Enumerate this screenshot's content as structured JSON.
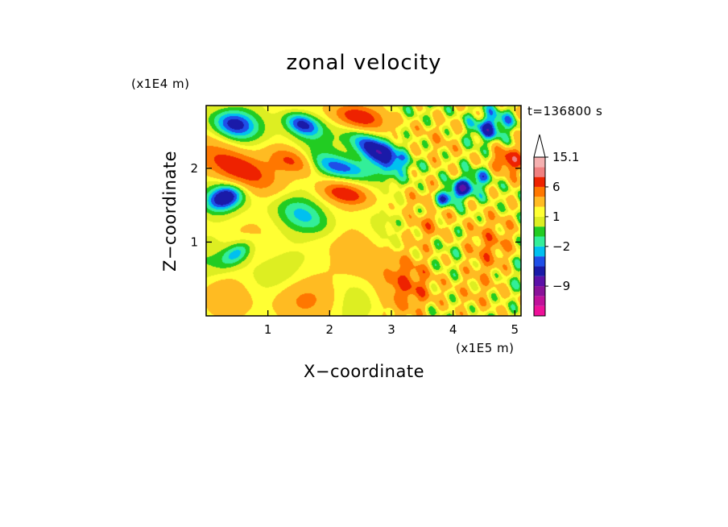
{
  "chart_data": {
    "type": "heatmap",
    "title": "zonal velocity",
    "xlabel": "X−coordinate",
    "ylabel": "Z−coordinate",
    "x_unit": "(x1E5 m)",
    "y_unit": "(x1E4 m)",
    "time_label": "t=136800 s",
    "xlim": [
      0,
      5.1
    ],
    "ylim": [
      0,
      2.85
    ],
    "x_ticks": [
      1,
      2,
      3,
      4,
      5
    ],
    "x_tick_labels": [
      "1",
      "2",
      "3",
      "4",
      "5"
    ],
    "y_ticks": [
      1,
      2
    ],
    "y_tick_labels": [
      "1",
      "2"
    ],
    "colorbar": {
      "labels": [
        {
          "value": 15.1,
          "text": "15.1"
        },
        {
          "value": 6,
          "text": "6"
        },
        {
          "value": 1,
          "text": "1"
        },
        {
          "value": -2,
          "text": "−2"
        },
        {
          "value": -9,
          "text": "−9"
        }
      ],
      "levels": [
        -15,
        -12,
        -9,
        -6,
        -4,
        -3,
        -2,
        -1,
        0,
        1,
        2,
        4,
        6,
        9,
        12,
        15.1
      ],
      "colors": [
        "#ee1199",
        "#c0119a",
        "#8a1299",
        "#5c11a8",
        "#1a1aa8",
        "#1f4fe8",
        "#00c0f0",
        "#33ee99",
        "#22cc22",
        "#ddee22",
        "#ffff33",
        "#ffbb22",
        "#ff7700",
        "#ee2200",
        "#f08080",
        "#f5b0b0"
      ]
    },
    "field_regions": [
      {
        "cx": 0.45,
        "cz": 2.6,
        "ax": 0.35,
        "az": 0.18,
        "rot": -8,
        "v": -5
      },
      {
        "cx": 1.55,
        "cz": 2.6,
        "ax": 0.3,
        "az": 0.15,
        "rot": -15,
        "v": -6
      },
      {
        "cx": 2.75,
        "cz": 2.25,
        "ax": 0.45,
        "az": 0.17,
        "rot": -25,
        "v": -7
      },
      {
        "cx": 4.0,
        "cz": 1.65,
        "ax": 0.6,
        "az": 0.13,
        "rot": 25,
        "v": -5
      },
      {
        "cx": 0.3,
        "cz": 1.6,
        "ax": 0.3,
        "az": 0.16,
        "rot": 15,
        "v": -6
      },
      {
        "cx": 2.2,
        "cz": 2.0,
        "ax": 0.5,
        "az": 0.15,
        "rot": -10,
        "v": -5
      },
      {
        "cx": 0.5,
        "cz": 0.85,
        "ax": 0.28,
        "az": 0.14,
        "rot": 25,
        "v": -4
      },
      {
        "cx": 4.6,
        "cz": 2.55,
        "ax": 0.35,
        "az": 0.18,
        "rot": 15,
        "v": -4
      },
      {
        "cx": 1.6,
        "cz": 1.35,
        "ax": 0.45,
        "az": 0.2,
        "rot": -20,
        "v": -2.5
      },
      {
        "cx": 0.5,
        "cz": 2.0,
        "ax": 0.55,
        "az": 0.22,
        "rot": -20,
        "v": 7
      },
      {
        "cx": 1.4,
        "cz": 2.1,
        "ax": 0.35,
        "az": 0.15,
        "rot": -15,
        "v": 5
      },
      {
        "cx": 2.45,
        "cz": 2.7,
        "ax": 0.4,
        "az": 0.15,
        "rot": -10,
        "v": 6
      },
      {
        "cx": 2.25,
        "cz": 1.65,
        "ax": 0.35,
        "az": 0.12,
        "rot": -10,
        "v": 6
      },
      {
        "cx": 3.3,
        "cz": 0.35,
        "ax": 0.45,
        "az": 0.4,
        "rot": -40,
        "v": 4
      },
      {
        "cx": 1.6,
        "cz": 0.25,
        "ax": 0.55,
        "az": 0.25,
        "rot": 0,
        "v": 3
      },
      {
        "cx": 4.55,
        "cz": 0.85,
        "ax": 0.4,
        "az": 0.35,
        "rot": 0,
        "v": 3
      },
      {
        "cx": 3.6,
        "cz": 1.3,
        "ax": 0.3,
        "az": 0.4,
        "rot": 0,
        "v": 2.5
      },
      {
        "cx": 2.5,
        "cz": 0.9,
        "ax": 0.4,
        "az": 0.35,
        "rot": -50,
        "v": 2.5
      },
      {
        "cx": 4.9,
        "cz": 2.1,
        "ax": 0.25,
        "az": 0.15,
        "rot": 0,
        "v": 6
      },
      {
        "cx": 1.8,
        "cz": 0.8,
        "ax": 0.35,
        "az": 0.2,
        "rot": 0,
        "v": -1
      },
      {
        "cx": 3.4,
        "cz": 2.6,
        "ax": 0.45,
        "az": 0.2,
        "rot": -10,
        "v": 0.5
      },
      {
        "cx": 0.25,
        "cz": 0.3,
        "ax": 0.35,
        "az": 0.25,
        "rot": 0,
        "v": 1.5
      }
    ],
    "field_background": 1.2
  }
}
